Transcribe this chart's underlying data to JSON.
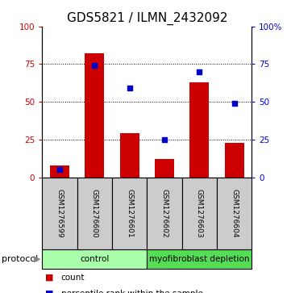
{
  "title": "GDS5821 / ILMN_2432092",
  "samples": [
    "GSM1276599",
    "GSM1276600",
    "GSM1276601",
    "GSM1276602",
    "GSM1276603",
    "GSM1276604"
  ],
  "counts": [
    8,
    82,
    29,
    12,
    63,
    23
  ],
  "percentiles": [
    5,
    74,
    59,
    25,
    70,
    49
  ],
  "bar_color": "#cc0000",
  "scatter_color": "#0000cc",
  "ylim": [
    0,
    100
  ],
  "yticks": [
    0,
    25,
    50,
    75,
    100
  ],
  "groups": [
    {
      "label": "control",
      "start": 0,
      "end": 3,
      "color": "#aaffaa"
    },
    {
      "label": "myofibroblast depletion",
      "start": 3,
      "end": 6,
      "color": "#55dd55"
    }
  ],
  "protocol_label": "protocol",
  "bg_color": "#ffffff",
  "sample_box_color": "#cccccc",
  "title_fontsize": 11,
  "tick_fontsize": 7.5,
  "sample_fontsize": 6.5,
  "protocol_fontsize": 8,
  "legend_fontsize": 7.5,
  "group_fontsize": 7.5
}
